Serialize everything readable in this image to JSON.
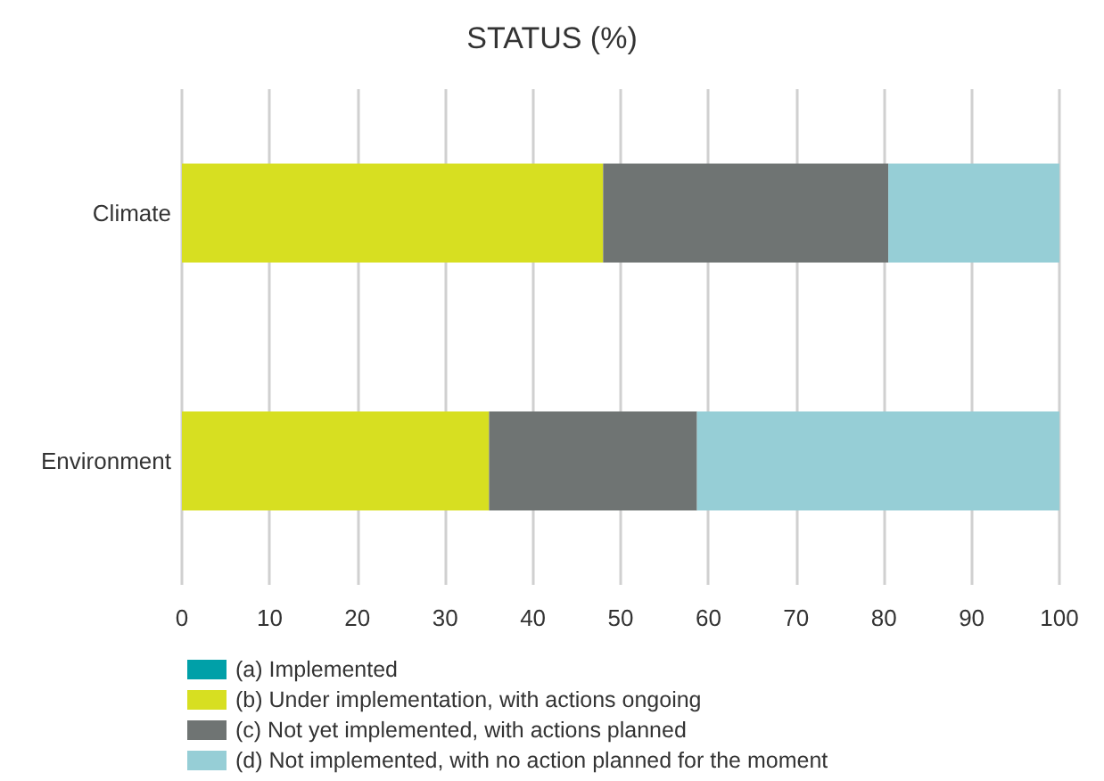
{
  "chart_data": {
    "type": "bar",
    "title": "STATUS (%)",
    "orientation": "horizontal",
    "stacked": true,
    "categories": [
      "Climate",
      "Environment"
    ],
    "series": [
      {
        "name": "(a) Implemented",
        "color": "#00a0a8",
        "values": [
          0,
          0
        ]
      },
      {
        "name": "(b) Under implementation, with actions ongoing",
        "color": "#d7df21",
        "values": [
          48,
          35
        ]
      },
      {
        "name": "(c) Not yet implemented, with actions planned",
        "color": "#6f7473",
        "values": [
          32.5,
          23.7
        ]
      },
      {
        "name": "(d) Not implemented, with no action planned for the moment",
        "color": "#96ced6",
        "values": [
          19.5,
          41.3
        ]
      }
    ],
    "xlim": [
      0,
      100
    ],
    "xticks": [
      0,
      10,
      20,
      30,
      40,
      50,
      60,
      70,
      80,
      90,
      100
    ],
    "grid": "x",
    "legend": "bottom left"
  }
}
